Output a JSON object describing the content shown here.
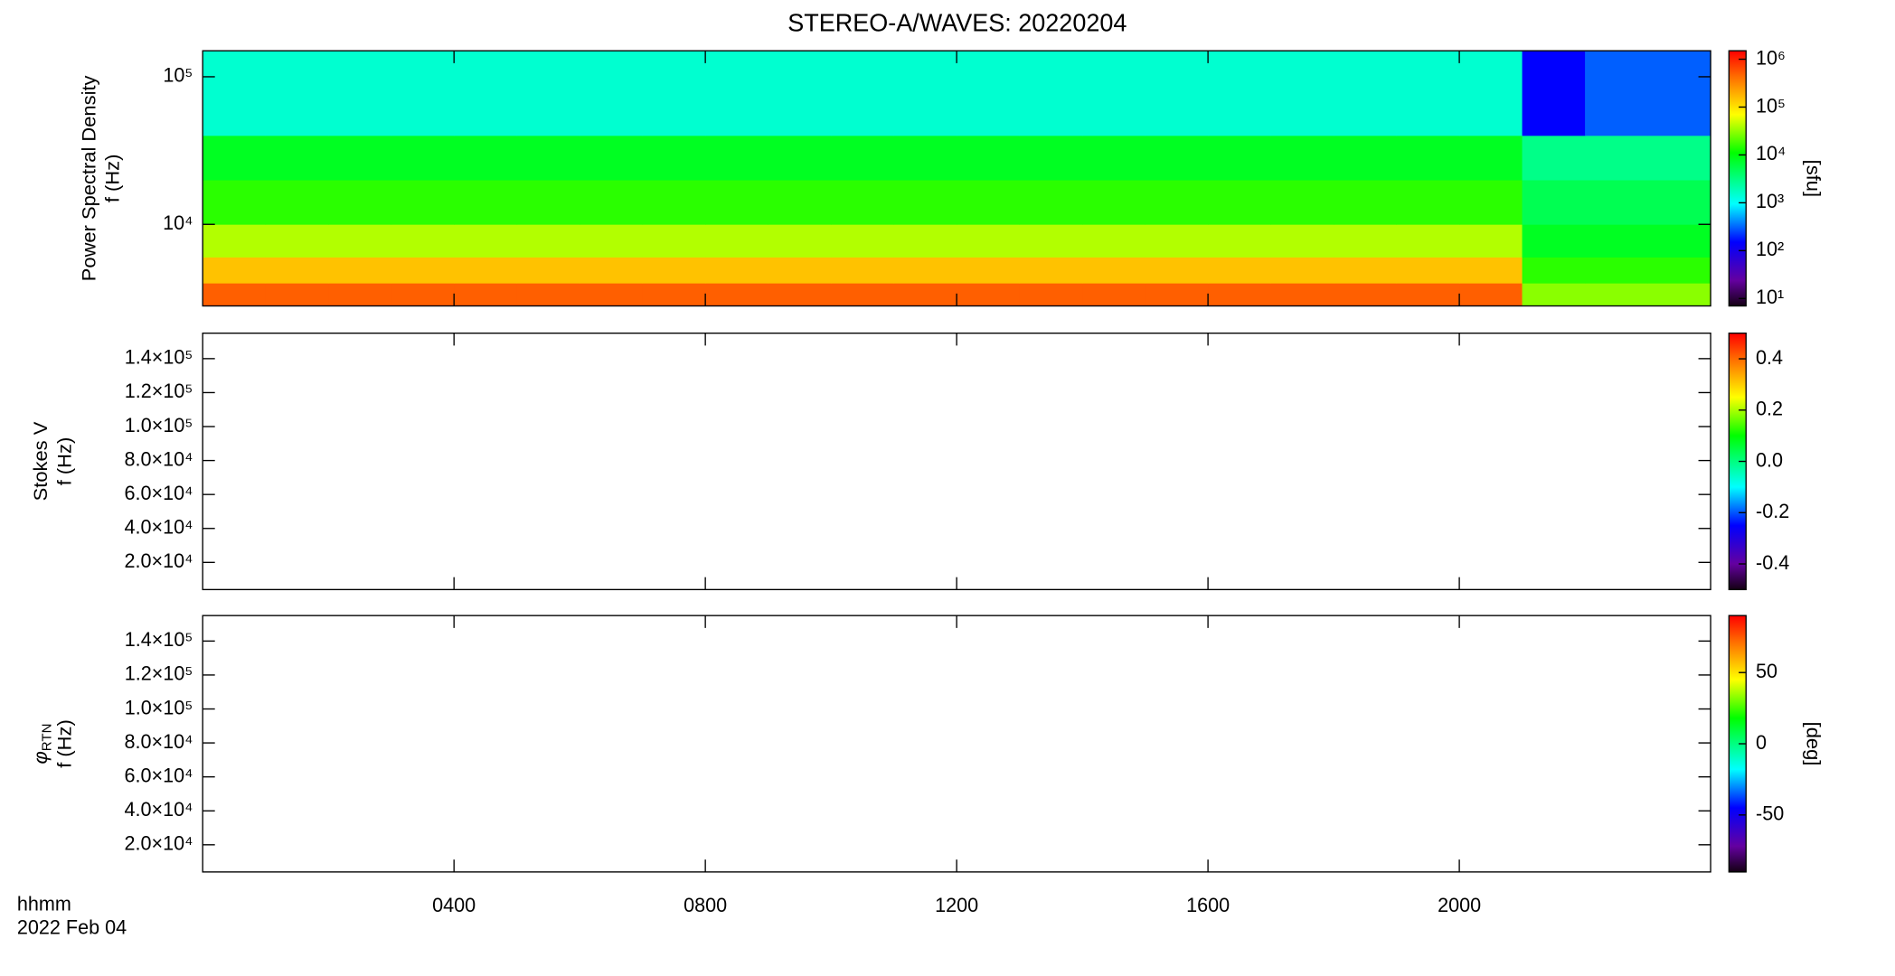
{
  "chart_data": [
    {
      "type": "heatmap",
      "title": "STEREO-A/WAVES: 20220204",
      "ylabel": "Power Spectral Density",
      "ylabel2": "f (Hz)",
      "x_edges": [
        0,
        1,
        2,
        3,
        4,
        5,
        6,
        7,
        8,
        9,
        10,
        11,
        12,
        13,
        14,
        15,
        16,
        17,
        18,
        19,
        20,
        21,
        22,
        23,
        24
      ],
      "y_edges": [
        2800,
        4000,
        6000,
        10000,
        20000,
        40000,
        150000
      ],
      "z": [
        [
          500000,
          500000,
          500000,
          500000,
          500000,
          500000,
          500000,
          500000,
          500000,
          500000,
          500000,
          500000,
          500000,
          500000,
          500000,
          500000,
          500000,
          500000,
          500000,
          500000,
          500000,
          30000,
          30000,
          30000
        ],
        [
          150000,
          150000,
          150000,
          150000,
          150000,
          150000,
          150000,
          150000,
          150000,
          150000,
          150000,
          150000,
          150000,
          150000,
          150000,
          150000,
          150000,
          150000,
          150000,
          150000,
          150000,
          15000,
          15000,
          15000
        ],
        [
          40000,
          40000,
          40000,
          40000,
          40000,
          40000,
          40000,
          40000,
          40000,
          40000,
          40000,
          40000,
          40000,
          40000,
          40000,
          40000,
          40000,
          40000,
          40000,
          40000,
          40000,
          8000,
          8000,
          8000
        ],
        [
          15000,
          15000,
          15000,
          15000,
          15000,
          15000,
          15000,
          15000,
          15000,
          15000,
          15000,
          15000,
          15000,
          15000,
          15000,
          15000,
          15000,
          15000,
          15000,
          15000,
          15000,
          5000,
          5000,
          5000
        ],
        [
          8000,
          8000,
          8000,
          8000,
          8000,
          8000,
          8000,
          8000,
          8000,
          8000,
          8000,
          8000,
          8000,
          8000,
          8000,
          8000,
          8000,
          8000,
          8000,
          8000,
          8000,
          3000,
          3000,
          3000
        ],
        [
          1500,
          1500,
          1500,
          1500,
          1500,
          1500,
          1500,
          1500,
          1500,
          1500,
          1500,
          1500,
          1500,
          1500,
          1500,
          1500,
          1500,
          1500,
          1500,
          1500,
          1500,
          150,
          300,
          300
        ]
      ],
      "xlim": [
        0,
        24
      ],
      "ylim": [
        2800,
        150000
      ],
      "ylog": true,
      "yticks": [
        {
          "value": 10000,
          "label": "10⁴"
        },
        {
          "value": 100000,
          "label": "10⁵"
        }
      ],
      "colorbar": {
        "lim": [
          7,
          1500000
        ],
        "log": true,
        "label": "[sfu]",
        "ticks": [
          {
            "value": 10,
            "label": "10¹"
          },
          {
            "value": 100,
            "label": "10²"
          },
          {
            "value": 1000,
            "label": "10³"
          },
          {
            "value": 10000,
            "label": "10⁴"
          },
          {
            "value": 100000,
            "label": "10⁵"
          },
          {
            "value": 1000000,
            "label": "10⁶"
          }
        ]
      }
    },
    {
      "type": "heatmap",
      "ylabel": "Stokes V",
      "ylabel2": "f (Hz)",
      "xlim": [
        0,
        24
      ],
      "ylim": [
        4000,
        155000
      ],
      "ylog": false,
      "yticks": [
        {
          "value": 20000,
          "label": "2.0×10⁴"
        },
        {
          "value": 40000,
          "label": "4.0×10⁴"
        },
        {
          "value": 60000,
          "label": "6.0×10⁴"
        },
        {
          "value": 80000,
          "label": "8.0×10⁴"
        },
        {
          "value": 100000,
          "label": "1.0×10⁵"
        },
        {
          "value": 120000,
          "label": "1.2×10⁵"
        },
        {
          "value": 140000,
          "label": "1.4×10⁵"
        }
      ],
      "colorbar": {
        "lim": [
          -0.5,
          0.5
        ],
        "log": false,
        "ticks": [
          -0.4,
          -0.2,
          {
            "value": 0,
            "label": "0.0"
          },
          0.2,
          0.4
        ]
      }
    },
    {
      "type": "heatmap",
      "ylabel": "φ",
      "ylabel_sub": "RTN",
      "ylabel2": "f (Hz)",
      "xlim": [
        0,
        24
      ],
      "ylim": [
        4000,
        155000
      ],
      "ylog": false,
      "yticks": [
        {
          "value": 20000,
          "label": "2.0×10⁴"
        },
        {
          "value": 40000,
          "label": "4.0×10⁴"
        },
        {
          "value": 60000,
          "label": "6.0×10⁴"
        },
        {
          "value": 80000,
          "label": "8.0×10⁴"
        },
        {
          "value": 100000,
          "label": "1.0×10⁵"
        },
        {
          "value": 120000,
          "label": "1.2×10⁵"
        },
        {
          "value": 140000,
          "label": "1.4×10⁵"
        }
      ],
      "xticks": [
        {
          "value": 4,
          "label": "0400"
        },
        {
          "value": 8,
          "label": "0800"
        },
        {
          "value": 12,
          "label": "1200"
        },
        {
          "value": 16,
          "label": "1600"
        },
        {
          "value": 20,
          "label": "2000"
        }
      ],
      "xlabel": "hhmm",
      "date": "2022 Feb 04",
      "colorbar": {
        "lim": [
          -90,
          90
        ],
        "log": false,
        "label": "[deg]",
        "ticks": [
          -50,
          0,
          50
        ]
      }
    }
  ]
}
